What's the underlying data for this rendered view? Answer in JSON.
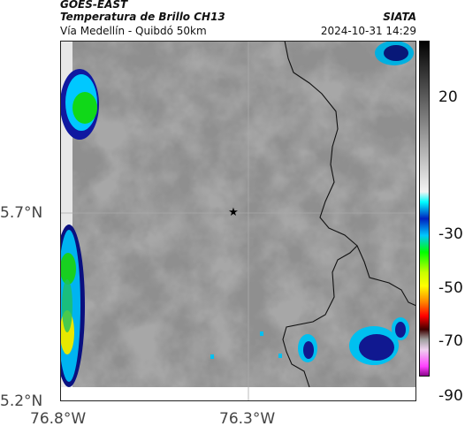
{
  "header": {
    "satellite": "GOES-EAST",
    "product": "Temperatura de Brillo CH13",
    "region": "Vía Medellín - Quibdó 50km",
    "agency": "SIATA",
    "datetime": "2024-10-31 14:29"
  },
  "axes": {
    "lat_labels": [
      "5.7°N",
      "5.2°N"
    ],
    "lon_labels": [
      "76.8°W",
      "76.3°W"
    ]
  },
  "colorbar": {
    "ticks": [
      "20",
      "-30",
      "-50",
      "-70",
      "-90"
    ],
    "colors": [
      "#f2f2f2",
      "#000000",
      "#ff00ff",
      "#3c00a0",
      "#0000ff",
      "#00ffff",
      "#00ff00",
      "#ffff00",
      "#ff8000",
      "#ff0000",
      "#400000"
    ]
  },
  "map": {
    "marker": "star-marker",
    "features": [
      "border-lines",
      "cloud-field"
    ]
  }
}
